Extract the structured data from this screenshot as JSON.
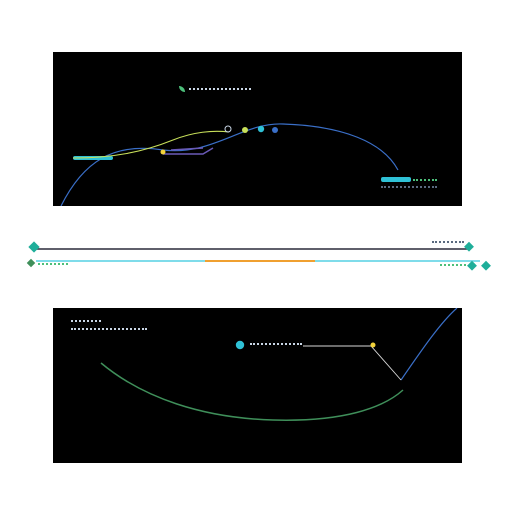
{
  "colors": {
    "background": "#ffffff",
    "panel": "#000000",
    "cyan": "#2fc1d6",
    "teal": "#1fae9a",
    "green": "#3f8f5a",
    "lime": "#c8e05a",
    "orange": "#f0a030",
    "blue": "#3a6fc8",
    "purple": "#6a5ab8",
    "yellow": "#f2d23a"
  },
  "icons": {
    "start_marker": "diamond-icon",
    "end_marker": "diamond-icon",
    "node_marker": "circle-icon",
    "legend_marker": "leaf-icon"
  },
  "top_panel": {
    "legend_label": "",
    "node_labels": [
      "",
      "",
      ""
    ],
    "badge_label": "",
    "caption": ""
  },
  "timeline": {
    "left_label": "",
    "right_label_top": "",
    "right_label_bottom": ""
  },
  "bottom_panel": {
    "legend_label_1": "",
    "legend_label_2": "",
    "point_label": ""
  }
}
